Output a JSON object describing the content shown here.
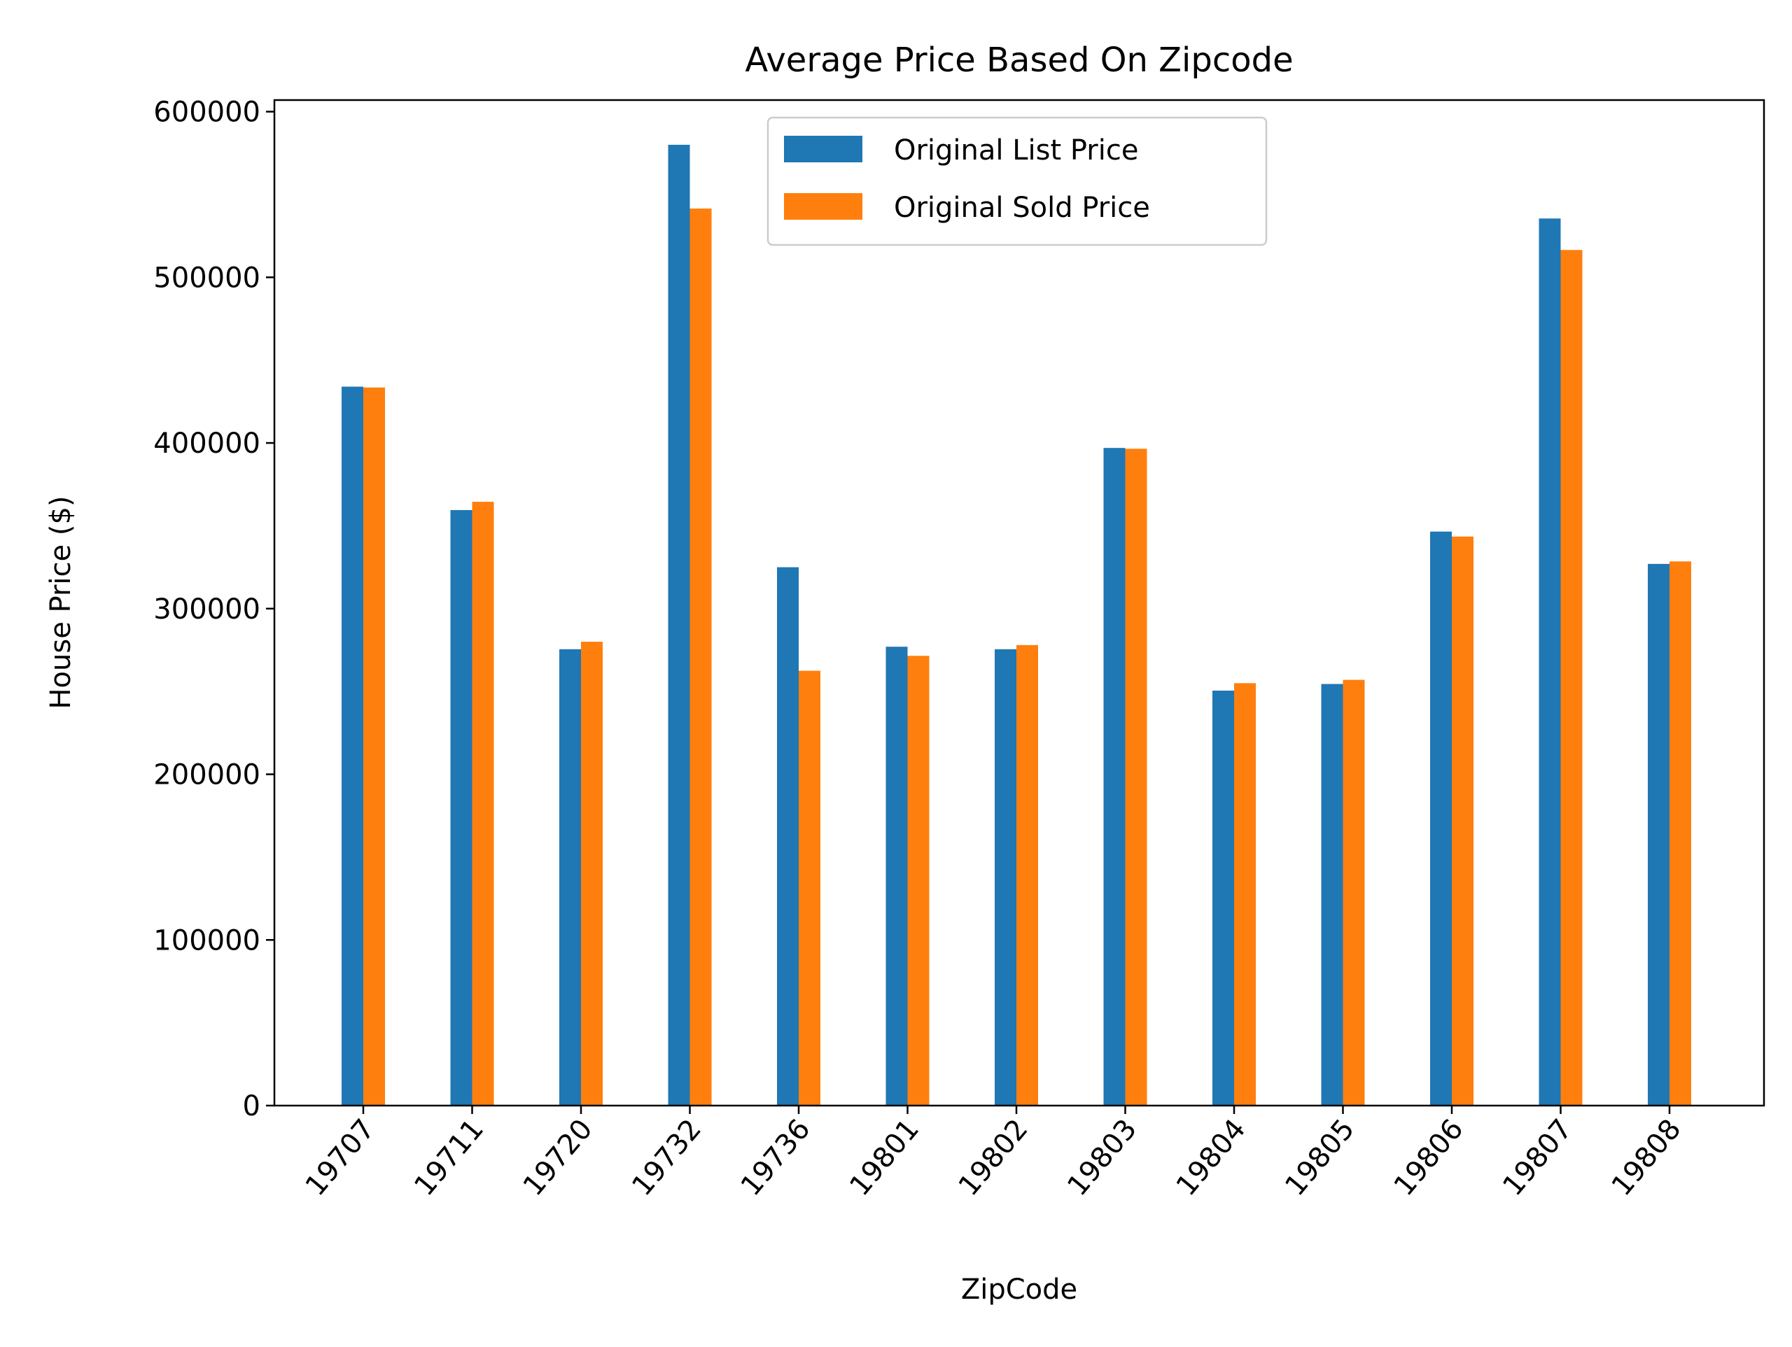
{
  "chart_data": {
    "type": "bar",
    "title": "Average Price Based On Zipcode",
    "xlabel": "ZipCode",
    "ylabel": "House Price ($)",
    "categories": [
      "19707",
      "19711",
      "19720",
      "19732",
      "19736",
      "19801",
      "19802",
      "19803",
      "19804",
      "19805",
      "19806",
      "19807",
      "19808"
    ],
    "series": [
      {
        "name": "Original List Price",
        "color": "#1f77b4",
        "values": [
          434000,
          359500,
          275500,
          580000,
          325000,
          277000,
          275500,
          397000,
          250500,
          254500,
          346500,
          535500,
          327000
        ]
      },
      {
        "name": "Original Sold Price",
        "color": "#ff7f0e",
        "values": [
          433500,
          364500,
          280000,
          541500,
          262500,
          271500,
          278000,
          396500,
          255000,
          257000,
          343500,
          516500,
          328500
        ]
      }
    ],
    "ylim": [
      0,
      607000
    ],
    "yticks": [
      0,
      100000,
      200000,
      300000,
      400000,
      500000,
      600000
    ],
    "ytick_labels": [
      "0",
      "100000",
      "200000",
      "300000",
      "400000",
      "500000",
      "600000"
    ],
    "legend_position": "top-center",
    "grid": false
  }
}
